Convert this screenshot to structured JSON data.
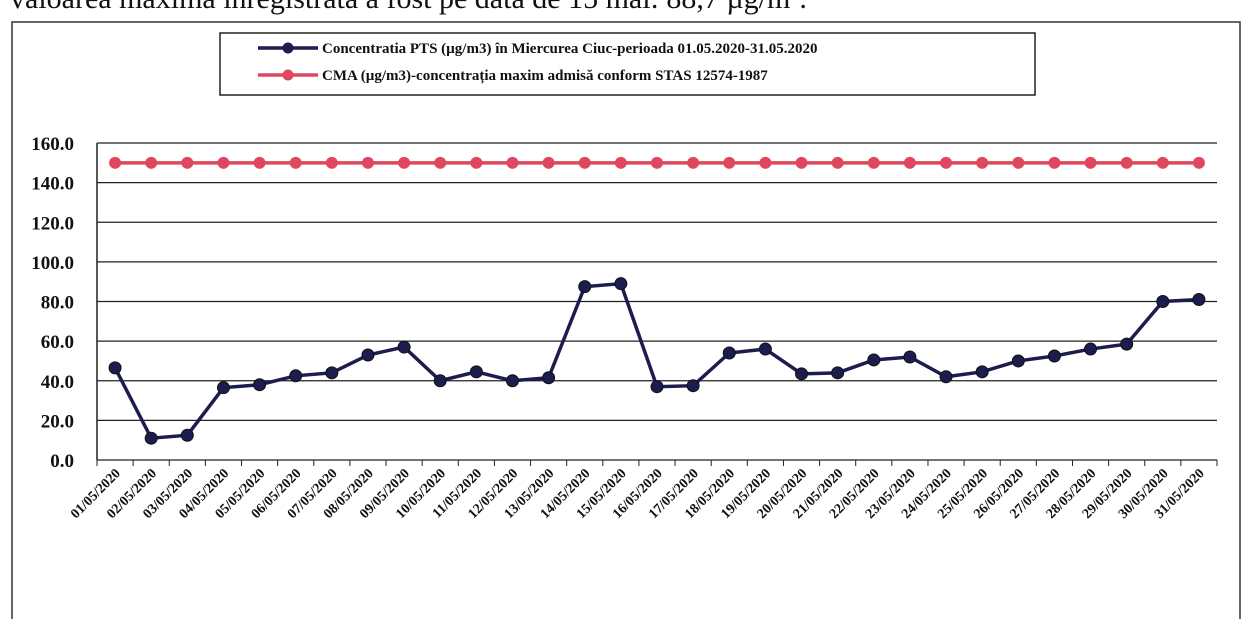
{
  "heading": "valoarea maximă înregistrată a fost pe data de 15 mai: 88,7 µg/m³.",
  "chart_data": {
    "type": "line",
    "categories": [
      "01/05/2020",
      "02/05/2020",
      "03/05/2020",
      "04/05/2020",
      "05/05/2020",
      "06/05/2020",
      "07/05/2020",
      "08/05/2020",
      "09/05/2020",
      "10/05/2020",
      "11/05/2020",
      "12/05/2020",
      "13/05/2020",
      "14/05/2020",
      "15/05/2020",
      "16/05/2020",
      "17/05/2020",
      "18/05/2020",
      "19/05/2020",
      "20/05/2020",
      "21/05/2020",
      "22/05/2020",
      "23/05/2020",
      "24/05/2020",
      "25/05/2020",
      "26/05/2020",
      "27/05/2020",
      "28/05/2020",
      "29/05/2020",
      "30/05/2020",
      "31/05/2020"
    ],
    "series": [
      {
        "name": "Concentratia PTS (µg/m3) în Miercurea Ciuc-perioada 01.05.2020-31.05.2020",
        "color": "#1c1c4e",
        "values": [
          46.5,
          11,
          12.5,
          36.5,
          38,
          42.5,
          44,
          53,
          57,
          40,
          44.5,
          40,
          41.5,
          87.5,
          89,
          37,
          37.5,
          54,
          56,
          43.5,
          44,
          50.5,
          52,
          42,
          44.5,
          50,
          52.5,
          56,
          58.5,
          80,
          81
        ]
      },
      {
        "name": "CMA (µg/m3)-concentrația maxim admisă conform STAS 12574-1987",
        "color": "#e0475e",
        "values": [
          150,
          150,
          150,
          150,
          150,
          150,
          150,
          150,
          150,
          150,
          150,
          150,
          150,
          150,
          150,
          150,
          150,
          150,
          150,
          150,
          150,
          150,
          150,
          150,
          150,
          150,
          150,
          150,
          150,
          150,
          150
        ]
      }
    ],
    "ylim": [
      0,
      160
    ],
    "yticks": [
      {
        "value": 0,
        "label": "0.0"
      },
      {
        "value": 20,
        "label": "20.0"
      },
      {
        "value": 40,
        "label": "40.0"
      },
      {
        "value": 60,
        "label": "60.0"
      },
      {
        "value": 80,
        "label": "80.0"
      },
      {
        "value": 100,
        "label": "100.0"
      },
      {
        "value": 120,
        "label": "120.0"
      },
      {
        "value": 140,
        "label": "140.0"
      },
      {
        "value": 160,
        "label": "160.0"
      }
    ],
    "grid": true
  }
}
